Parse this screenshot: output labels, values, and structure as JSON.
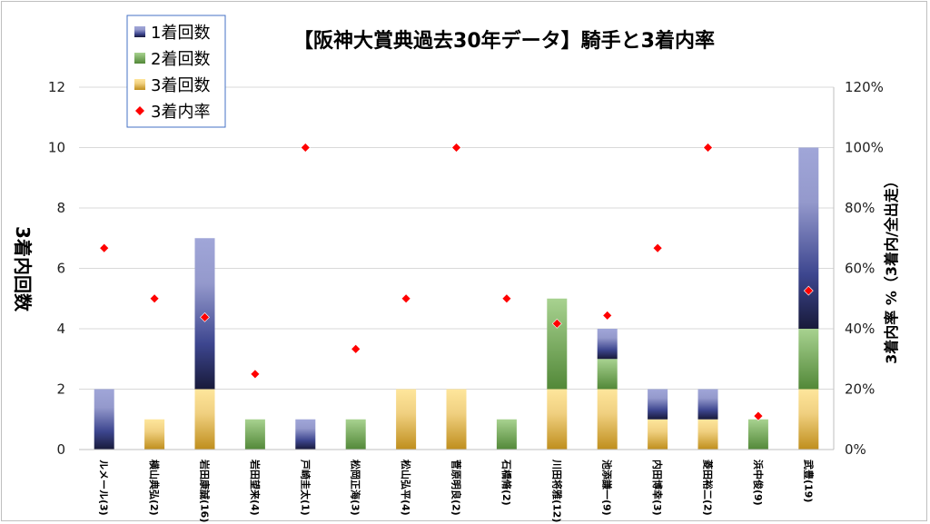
{
  "chart_data": {
    "type": "bar",
    "title": "【阪神大賞典過去30年データ】騎手と3着内率",
    "ylabel": "3着内回数",
    "y2label": "3着内率 %（3着内/全出走）",
    "ylim": [
      0,
      12
    ],
    "y2lim": [
      0,
      120
    ],
    "yticks": [
      "0",
      "2",
      "4",
      "6",
      "8",
      "10",
      "12"
    ],
    "y2ticks": [
      "0%",
      "20%",
      "40%",
      "60%",
      "80%",
      "100%",
      "120%"
    ],
    "grid": true,
    "legend_position": "top-left",
    "categories": [
      "ルメール(3)",
      "横山典弘(2)",
      "岩田康誠(16)",
      "岩田望来(4)",
      "戸崎圭太(1)",
      "松岡正海(3)",
      "松山弘平(4)",
      "菅原明良(2)",
      "石橋脩(2)",
      "川田将雅(12)",
      "池添謙一(9)",
      "内田博幸(3)",
      "菱田裕二(2)",
      "浜中俊(9)",
      "武豊(19)"
    ],
    "series": [
      {
        "name": "1着回数",
        "kind": "stacked-bar",
        "values": [
          2,
          0,
          5,
          0,
          1,
          0,
          0,
          0,
          0,
          0,
          1,
          1,
          1,
          0,
          6
        ]
      },
      {
        "name": "2着回数",
        "kind": "stacked-bar",
        "values": [
          0,
          0,
          0,
          1,
          0,
          1,
          0,
          0,
          1,
          3,
          1,
          0,
          0,
          1,
          2
        ]
      },
      {
        "name": "3着回数",
        "kind": "stacked-bar",
        "values": [
          0,
          1,
          2,
          0,
          0,
          0,
          2,
          2,
          0,
          2,
          2,
          1,
          1,
          0,
          2
        ]
      },
      {
        "name": "3着内率",
        "kind": "scatter-secondary",
        "values": [
          66.7,
          50,
          43.8,
          25,
          100,
          33.3,
          50,
          100,
          50,
          41.7,
          44.4,
          66.7,
          100,
          11.1,
          52.6
        ]
      }
    ],
    "colors": {
      "first": "#4a55a0",
      "second": "#6aa84f",
      "third": "#e8c060",
      "rate": "#ff0000"
    }
  }
}
